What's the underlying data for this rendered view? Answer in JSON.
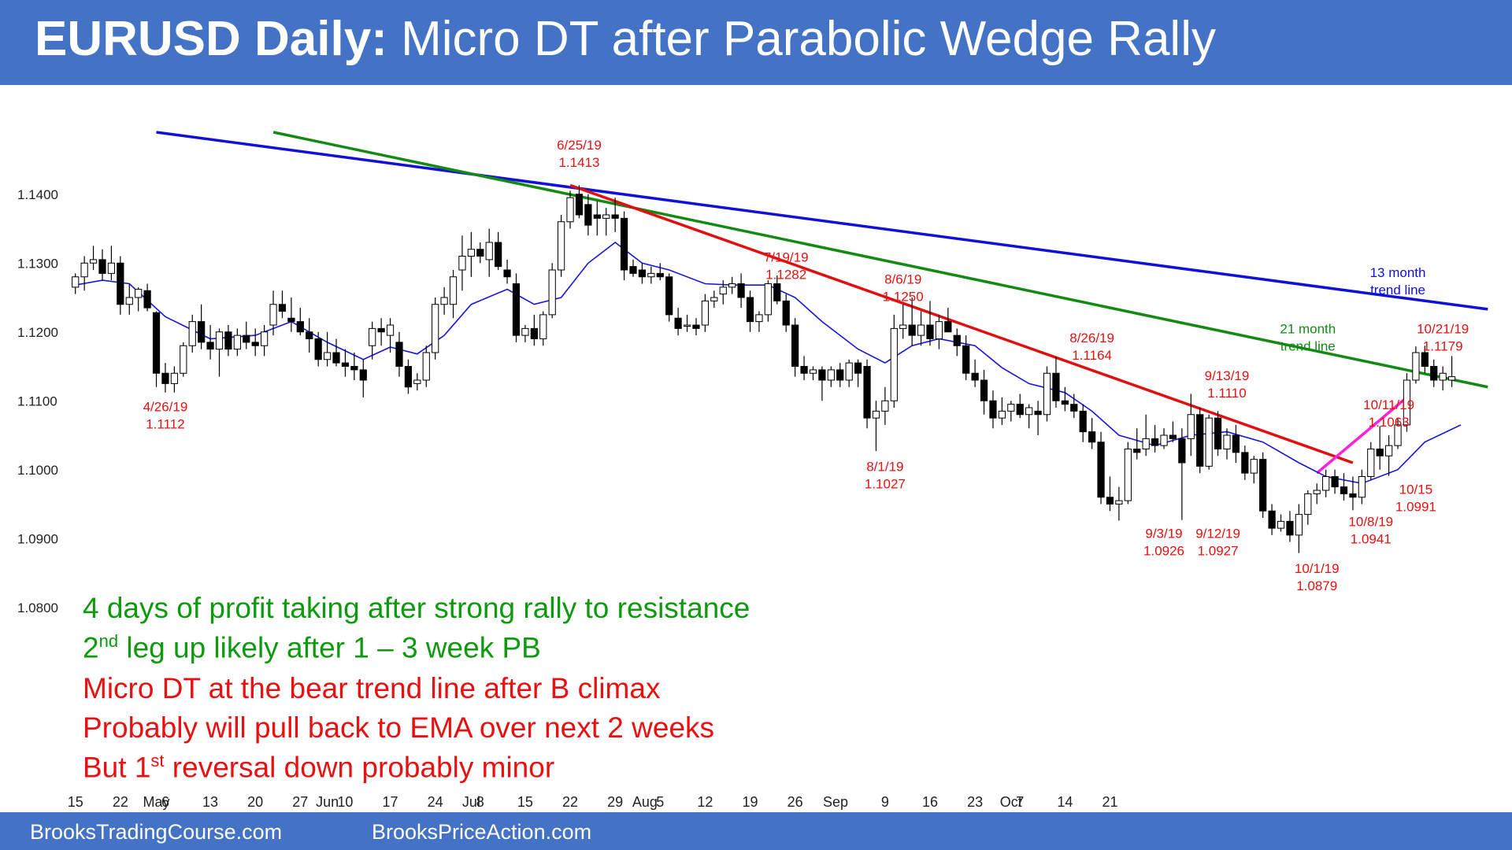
{
  "header": {
    "title_bold": "EURUSD Daily:",
    "title_rest": " Micro DT after Parabolic Wedge Rally"
  },
  "footer": {
    "left": "BrooksTradingCourse.com",
    "right": "BrooksPriceAction.com"
  },
  "colors": {
    "banner": "#4472c4",
    "bull_candle": "#ffffff",
    "bear_candle": "#000000",
    "ema": "#1515e0",
    "trend_13m": "#1010d8",
    "trend_21m": "#138a13",
    "bear_trend": "#e01010",
    "wedge_line": "#ff22dd",
    "annotation": "#e81010"
  },
  "bullets": [
    {
      "color": "green",
      "text": "4 days of profit taking after strong rally to resistance"
    },
    {
      "color": "green",
      "pre": "2",
      "sup": "nd",
      "post": " leg up likely after 1 – 3 week PB"
    },
    {
      "color": "red",
      "text": "Micro DT at the bear trend line after B climax"
    },
    {
      "color": "red",
      "text": "Probably will pull back to EMA over next 2 weeks"
    },
    {
      "color": "red",
      "pre": "But 1",
      "sup": "st",
      "post": " reversal down probably minor"
    }
  ],
  "chart_data": {
    "type": "candlestick",
    "title": "EURUSD Daily",
    "ylim": [
      1.077,
      1.149
    ],
    "y_ticks": [
      "1.1400",
      "1.1300",
      "1.1200",
      "1.1100",
      "1.1000",
      "1.0900",
      "1.0800"
    ],
    "x_ticks": [
      {
        "label": "15",
        "day": 0
      },
      {
        "label": "22",
        "day": 5
      },
      {
        "label": "May",
        "day": 9
      },
      {
        "label": "6",
        "day": 10
      },
      {
        "label": "13",
        "day": 15
      },
      {
        "label": "20",
        "day": 20
      },
      {
        "label": "27",
        "day": 25
      },
      {
        "label": "Jun",
        "day": 28
      },
      {
        "label": "10",
        "day": 30
      },
      {
        "label": "17",
        "day": 35
      },
      {
        "label": "24",
        "day": 40
      },
      {
        "label": "Jul",
        "day": 44
      },
      {
        "label": "8",
        "day": 45
      },
      {
        "label": "15",
        "day": 50
      },
      {
        "label": "22",
        "day": 55
      },
      {
        "label": "29",
        "day": 60
      },
      {
        "label": "Aug",
        "day": 63.3
      },
      {
        "label": "5",
        "day": 65
      },
      {
        "label": "12",
        "day": 70
      },
      {
        "label": "19",
        "day": 75
      },
      {
        "label": "26",
        "day": 80
      },
      {
        "label": "Sep",
        "day": 84.5
      },
      {
        "label": "9",
        "day": 90
      },
      {
        "label": "16",
        "day": 95
      },
      {
        "label": "23",
        "day": 100
      },
      {
        "label": "Oct",
        "day": 104
      },
      {
        "label": "7",
        "day": 105
      },
      {
        "label": "14",
        "day": 110
      },
      {
        "label": "21",
        "day": 115
      }
    ],
    "candles": [
      [
        1.1265,
        1.1285,
        1.1255,
        1.128
      ],
      [
        1.128,
        1.131,
        1.126,
        1.13
      ],
      [
        1.13,
        1.1325,
        1.129,
        1.1305
      ],
      [
        1.1305,
        1.132,
        1.1275,
        1.1285
      ],
      [
        1.1285,
        1.1325,
        1.1275,
        1.13
      ],
      [
        1.13,
        1.131,
        1.1225,
        1.124
      ],
      [
        1.124,
        1.127,
        1.1225,
        1.125
      ],
      [
        1.125,
        1.1265,
        1.123,
        1.1262
      ],
      [
        1.126,
        1.127,
        1.123,
        1.1235
      ],
      [
        1.1228,
        1.123,
        1.112,
        1.114
      ],
      [
        1.114,
        1.1155,
        1.1112,
        1.1125
      ],
      [
        1.1125,
        1.115,
        1.1112,
        1.114
      ],
      [
        1.114,
        1.1185,
        1.1135,
        1.118
      ],
      [
        1.118,
        1.1225,
        1.117,
        1.1215
      ],
      [
        1.1215,
        1.124,
        1.1175,
        1.1185
      ],
      [
        1.1185,
        1.121,
        1.116,
        1.1175
      ],
      [
        1.1175,
        1.1205,
        1.1135,
        1.12
      ],
      [
        1.12,
        1.121,
        1.1165,
        1.1175
      ],
      [
        1.1175,
        1.1205,
        1.1165,
        1.1195
      ],
      [
        1.1195,
        1.1215,
        1.1175,
        1.1185
      ],
      [
        1.1185,
        1.1205,
        1.1165,
        1.118
      ],
      [
        1.118,
        1.121,
        1.1165,
        1.12
      ],
      [
        1.121,
        1.126,
        1.1195,
        1.124
      ],
      [
        1.124,
        1.126,
        1.122,
        1.123
      ],
      [
        1.122,
        1.125,
        1.12,
        1.1215
      ],
      [
        1.1215,
        1.1235,
        1.1195,
        1.12
      ],
      [
        1.12,
        1.122,
        1.117,
        1.119
      ],
      [
        1.119,
        1.12,
        1.115,
        1.116
      ],
      [
        1.116,
        1.12,
        1.115,
        1.117
      ],
      [
        1.117,
        1.119,
        1.115,
        1.1155
      ],
      [
        1.1155,
        1.1175,
        1.1135,
        1.115
      ],
      [
        1.115,
        1.117,
        1.113,
        1.1145
      ],
      [
        1.1145,
        1.116,
        1.1105,
        1.113
      ],
      [
        1.118,
        1.1215,
        1.116,
        1.1205
      ],
      [
        1.1205,
        1.122,
        1.118,
        1.12
      ],
      [
        1.1195,
        1.122,
        1.117,
        1.121
      ],
      [
        1.1185,
        1.12,
        1.1135,
        1.115
      ],
      [
        1.115,
        1.116,
        1.111,
        1.112
      ],
      [
        1.1125,
        1.114,
        1.1115,
        1.113
      ],
      [
        1.113,
        1.118,
        1.112,
        1.117
      ],
      [
        1.117,
        1.125,
        1.116,
        1.124
      ],
      [
        1.124,
        1.1265,
        1.1225,
        1.125
      ],
      [
        1.124,
        1.129,
        1.122,
        1.128
      ],
      [
        1.129,
        1.134,
        1.126,
        1.131
      ],
      [
        1.131,
        1.1345,
        1.128,
        1.132
      ],
      [
        1.132,
        1.133,
        1.13,
        1.131
      ],
      [
        1.1305,
        1.135,
        1.128,
        1.133
      ],
      [
        1.133,
        1.1345,
        1.129,
        1.1295
      ],
      [
        1.129,
        1.1305,
        1.127,
        1.128
      ],
      [
        1.127,
        1.1285,
        1.1185,
        1.1195
      ],
      [
        1.1195,
        1.121,
        1.1185,
        1.1205
      ],
      [
        1.1205,
        1.1225,
        1.118,
        1.119
      ],
      [
        1.119,
        1.123,
        1.118,
        1.1225
      ],
      [
        1.1225,
        1.13,
        1.122,
        1.129
      ],
      [
        1.129,
        1.137,
        1.128,
        1.136
      ],
      [
        1.136,
        1.1405,
        1.135,
        1.1395
      ],
      [
        1.14,
        1.1413,
        1.1365,
        1.137
      ],
      [
        1.1385,
        1.14,
        1.134,
        1.1355
      ],
      [
        1.137,
        1.139,
        1.134,
        1.1365
      ],
      [
        1.1365,
        1.138,
        1.134,
        1.137
      ],
      [
        1.137,
        1.1395,
        1.1345,
        1.1365
      ],
      [
        1.1365,
        1.1375,
        1.1275,
        1.129
      ],
      [
        1.1295,
        1.1305,
        1.128,
        1.1285
      ],
      [
        1.129,
        1.13,
        1.127,
        1.128
      ],
      [
        1.128,
        1.1295,
        1.127,
        1.1285
      ],
      [
        1.1285,
        1.13,
        1.1275,
        1.128
      ],
      [
        1.128,
        1.1285,
        1.1215,
        1.1225
      ],
      [
        1.122,
        1.1235,
        1.1195,
        1.1205
      ],
      [
        1.121,
        1.1225,
        1.12,
        1.121
      ],
      [
        1.121,
        1.122,
        1.1195,
        1.1205
      ],
      [
        1.121,
        1.1255,
        1.12,
        1.1245
      ],
      [
        1.1245,
        1.126,
        1.1235,
        1.125
      ],
      [
        1.1255,
        1.1275,
        1.124,
        1.1265
      ],
      [
        1.1265,
        1.128,
        1.1255,
        1.127
      ],
      [
        1.127,
        1.1285,
        1.1235,
        1.125
      ],
      [
        1.125,
        1.126,
        1.12,
        1.1215
      ],
      [
        1.1215,
        1.123,
        1.12,
        1.1225
      ],
      [
        1.1225,
        1.1275,
        1.1215,
        1.127
      ],
      [
        1.127,
        1.1282,
        1.124,
        1.1245
      ],
      [
        1.1245,
        1.1255,
        1.12,
        1.121
      ],
      [
        1.121,
        1.122,
        1.1135,
        1.115
      ],
      [
        1.115,
        1.1165,
        1.113,
        1.114
      ],
      [
        1.114,
        1.115,
        1.113,
        1.1145
      ],
      [
        1.1145,
        1.115,
        1.11,
        1.113
      ],
      [
        1.113,
        1.115,
        1.112,
        1.1145
      ],
      [
        1.1145,
        1.1155,
        1.112,
        1.113
      ],
      [
        1.113,
        1.116,
        1.112,
        1.1155
      ],
      [
        1.1155,
        1.116,
        1.112,
        1.114
      ],
      [
        1.115,
        1.116,
        1.106,
        1.1075
      ],
      [
        1.1075,
        1.11,
        1.1027,
        1.1085
      ],
      [
        1.1085,
        1.112,
        1.1065,
        1.11
      ],
      [
        1.11,
        1.1225,
        1.109,
        1.1205
      ],
      [
        1.1205,
        1.124,
        1.119,
        1.121
      ],
      [
        1.121,
        1.125,
        1.118,
        1.1195
      ],
      [
        1.1195,
        1.123,
        1.118,
        1.121
      ],
      [
        1.121,
        1.1245,
        1.118,
        1.119
      ],
      [
        1.119,
        1.1225,
        1.1175,
        1.1215
      ],
      [
        1.1215,
        1.1235,
        1.12,
        1.12
      ],
      [
        1.1195,
        1.1205,
        1.1165,
        1.118
      ],
      [
        1.118,
        1.1195,
        1.113,
        1.114
      ],
      [
        1.114,
        1.116,
        1.112,
        1.113
      ],
      [
        1.113,
        1.1145,
        1.108,
        1.11
      ],
      [
        1.11,
        1.1115,
        1.106,
        1.1075
      ],
      [
        1.1075,
        1.1105,
        1.1065,
        1.1085
      ],
      [
        1.1085,
        1.11,
        1.107,
        1.1095
      ],
      [
        1.1095,
        1.111,
        1.1075,
        1.108
      ],
      [
        1.108,
        1.1095,
        1.106,
        1.109
      ],
      [
        1.1085,
        1.11,
        1.105,
        1.108
      ],
      [
        1.108,
        1.115,
        1.107,
        1.114
      ],
      [
        1.114,
        1.1164,
        1.109,
        1.11
      ],
      [
        1.11,
        1.112,
        1.1085,
        1.1095
      ],
      [
        1.1095,
        1.111,
        1.1075,
        1.1085
      ],
      [
        1.1085,
        1.1095,
        1.104,
        1.1055
      ],
      [
        1.1055,
        1.1075,
        1.103,
        1.104
      ],
      [
        1.104,
        1.1055,
        1.095,
        1.096
      ],
      [
        1.096,
        1.099,
        1.094,
        1.095
      ],
      [
        1.095,
        1.0975,
        1.0926,
        1.0955
      ],
      [
        1.0955,
        1.104,
        1.095,
        1.103
      ],
      [
        1.103,
        1.106,
        1.1015,
        1.1025
      ],
      [
        1.103,
        1.108,
        1.102,
        1.1045
      ],
      [
        1.1045,
        1.1065,
        1.1025,
        1.1035
      ],
      [
        1.1035,
        1.106,
        1.103,
        1.105
      ],
      [
        1.105,
        1.107,
        1.104,
        1.1045
      ],
      [
        1.1045,
        1.106,
        1.0927,
        1.101
      ],
      [
        1.1045,
        1.111,
        1.102,
        1.108
      ],
      [
        1.108,
        1.109,
        1.0995,
        1.1005
      ],
      [
        1.1005,
        1.108,
        1.1,
        1.1075
      ],
      [
        1.1075,
        1.1085,
        1.102,
        1.103
      ],
      [
        1.103,
        1.106,
        1.1015,
        1.105
      ],
      [
        1.105,
        1.1065,
        1.101,
        1.1025
      ],
      [
        1.1025,
        1.1035,
        1.0985,
        1.0995
      ],
      [
        1.0995,
        1.102,
        1.098,
        1.1015
      ],
      [
        1.1015,
        1.1025,
        1.093,
        1.094
      ],
      [
        1.094,
        1.095,
        1.0905,
        1.0915
      ],
      [
        1.0915,
        1.0935,
        1.091,
        1.0925
      ],
      [
        1.0925,
        1.094,
        1.0895,
        1.0905
      ],
      [
        1.0905,
        1.095,
        1.0879,
        1.0935
      ],
      [
        1.0935,
        1.097,
        1.092,
        1.0965
      ],
      [
        1.0965,
        1.098,
        1.095,
        1.097
      ],
      [
        1.097,
        1.1,
        1.096,
        1.099
      ],
      [
        1.099,
        1.1,
        1.0965,
        1.0975
      ],
      [
        1.0975,
        1.0995,
        1.0955,
        1.0965
      ],
      [
        1.0965,
        1.099,
        1.0941,
        1.096
      ],
      [
        1.096,
        1.1,
        1.095,
        1.099
      ],
      [
        1.099,
        1.104,
        1.0985,
        1.103
      ],
      [
        1.103,
        1.1063,
        1.1,
        1.102
      ],
      [
        1.102,
        1.105,
        1.0991,
        1.1035
      ],
      [
        1.1035,
        1.1075,
        1.103,
        1.1065
      ],
      [
        1.1065,
        1.114,
        1.1055,
        1.113
      ],
      [
        1.113,
        1.1179,
        1.1125,
        1.117
      ],
      [
        1.117,
        1.118,
        1.114,
        1.115
      ],
      [
        1.115,
        1.116,
        1.112,
        1.113
      ],
      [
        1.113,
        1.115,
        1.1115,
        1.114
      ],
      [
        1.113,
        1.1165,
        1.112,
        1.1135
      ]
    ],
    "ema": [
      [
        0,
        1.1268
      ],
      [
        3,
        1.1275
      ],
      [
        6,
        1.127
      ],
      [
        10,
        1.1222
      ],
      [
        15,
        1.119
      ],
      [
        20,
        1.1195
      ],
      [
        24,
        1.1215
      ],
      [
        28,
        1.1185
      ],
      [
        32,
        1.116
      ],
      [
        35,
        1.1178
      ],
      [
        38,
        1.1168
      ],
      [
        41,
        1.1195
      ],
      [
        44,
        1.124
      ],
      [
        48,
        1.1262
      ],
      [
        51,
        1.124
      ],
      [
        54,
        1.125
      ],
      [
        57,
        1.13
      ],
      [
        60,
        1.133
      ],
      [
        63,
        1.13
      ],
      [
        66,
        1.129
      ],
      [
        70,
        1.127
      ],
      [
        73,
        1.1268
      ],
      [
        77,
        1.1268
      ],
      [
        80,
        1.125
      ],
      [
        83,
        1.1215
      ],
      [
        87,
        1.1175
      ],
      [
        90,
        1.1155
      ],
      [
        93,
        1.118
      ],
      [
        96,
        1.119
      ],
      [
        100,
        1.118
      ],
      [
        103,
        1.1148
      ],
      [
        106,
        1.1125
      ],
      [
        110,
        1.1112
      ],
      [
        113,
        1.1085
      ],
      [
        116,
        1.105
      ],
      [
        120,
        1.1035
      ],
      [
        124,
        1.105
      ],
      [
        128,
        1.1055
      ],
      [
        132,
        1.104
      ],
      [
        136,
        1.101
      ],
      [
        139,
        1.099
      ],
      [
        143,
        1.098
      ],
      [
        147,
        1.1
      ],
      [
        150,
        1.104
      ],
      [
        154,
        1.1065
      ]
    ],
    "trend_lines": [
      {
        "name": "13 month trend line",
        "from": [
          9,
          1.149
        ],
        "to": [
          157,
          1.1233
        ],
        "color": "#1010d8"
      },
      {
        "name": "21 month trend line",
        "from": [
          22,
          1.149
        ],
        "to": [
          157,
          1.112
        ],
        "color": "#138a13"
      },
      {
        "name": "bear trend line",
        "from": [
          55,
          1.1413
        ],
        "to": [
          142,
          1.101
        ],
        "color": "#e01010"
      },
      {
        "name": "wedge",
        "from": [
          138,
          1.0995
        ],
        "to": [
          148,
          1.1105
        ],
        "color": "#ff22dd"
      }
    ],
    "trend_labels": [
      {
        "lines": [
          "13 month",
          "trend line"
        ],
        "color": "#1010d8",
        "at": [
          147,
          1.128
        ]
      },
      {
        "lines": [
          "21 month",
          "trend line"
        ],
        "color": "#138a13",
        "at": [
          137,
          1.1198
        ]
      }
    ],
    "annotations": [
      {
        "date": "4/26/19",
        "price": "1.1112",
        "at": [
          10,
          1.1085
        ]
      },
      {
        "date": "6/25/19",
        "price": "1.1413",
        "at": [
          56,
          1.1465
        ]
      },
      {
        "date": "7/19/19",
        "price": "1.1282",
        "at": [
          79,
          1.1302
        ]
      },
      {
        "date": "8/6/19",
        "price": "1.1250",
        "at": [
          92,
          1.127
        ]
      },
      {
        "date": "8/26/19",
        "price": "1.1164",
        "at": [
          113,
          1.1185
        ]
      },
      {
        "date": "8/1/19",
        "price": "1.1027",
        "at": [
          90,
          1.0998
        ]
      },
      {
        "date": "9/13/19",
        "price": "1.1110",
        "at": [
          128,
          1.113
        ]
      },
      {
        "date": "9/3/19",
        "price": "1.0926",
        "at": [
          121,
          1.0901
        ]
      },
      {
        "date": "9/12/19",
        "price": "1.0927",
        "at": [
          127,
          1.0901
        ]
      },
      {
        "date": "10/1/19",
        "price": "1.0879",
        "at": [
          138,
          1.085
        ]
      },
      {
        "date": "10/8/19",
        "price": "1.0941",
        "at": [
          144,
          1.0918
        ]
      },
      {
        "date": "10/15",
        "price": "1.0991",
        "at": [
          149,
          1.0965
        ]
      },
      {
        "date": "10/11/19",
        "price": "1.1063",
        "at": [
          146,
          1.1088
        ]
      },
      {
        "date": "10/21/19",
        "price": "1.1179",
        "at": [
          152,
          1.1198
        ]
      }
    ]
  }
}
